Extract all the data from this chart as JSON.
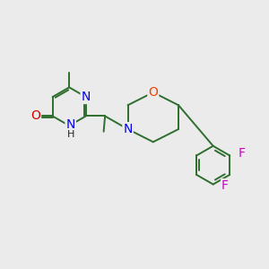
{
  "bg_color": "#ebebeb",
  "bond_color": "#2e6e2e",
  "N_color": "#0000ee",
  "O_color": "#dd0000",
  "O_morph_color": "#ee4400",
  "F_color": "#cc00cc",
  "C_color": "#000000",
  "bond_lw": 1.4,
  "font_size": 9,
  "figsize": [
    3.0,
    3.0
  ],
  "dpi": 100,
  "xlim": [
    0,
    10
  ],
  "ylim": [
    0,
    10
  ]
}
